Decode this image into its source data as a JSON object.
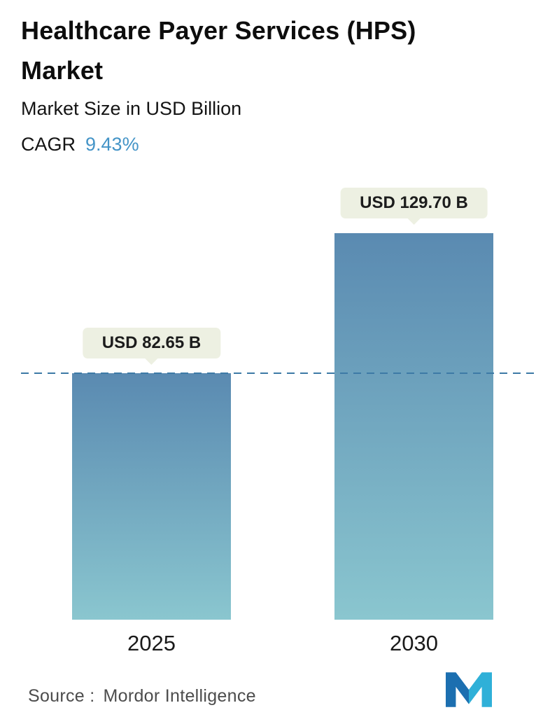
{
  "header": {
    "title": "Healthcare Payer Services (HPS) Market",
    "subtitle": "Market Size in USD Billion",
    "cagr_label": "CAGR",
    "cagr_value": "9.43%"
  },
  "chart_data": {
    "type": "bar",
    "title": "Healthcare Payer Services (HPS) Market",
    "ylabel": "Market Size in USD Billion",
    "categories": [
      "2025",
      "2030"
    ],
    "values": [
      82.65,
      129.7
    ],
    "value_labels": [
      "USD 82.65 B",
      "USD 129.70 B"
    ],
    "cagr_percent": 9.43,
    "ylim": [
      0,
      129.7
    ],
    "grid": false,
    "legend": false,
    "dashed_reference_line_value": 82.65,
    "colors": {
      "bar_gradient_top": "#5a8ab1",
      "bar_gradient_bottom": "#8ac6cf",
      "dashed_line": "#3d7aa6",
      "tooltip_bg": "#edf0e2",
      "cagr_accent": "#4494c7",
      "logo_dark": "#1c6fb0",
      "logo_light": "#2fb0d8"
    }
  },
  "footer": {
    "source_label": "Source :",
    "source_name": "Mordor Intelligence"
  }
}
